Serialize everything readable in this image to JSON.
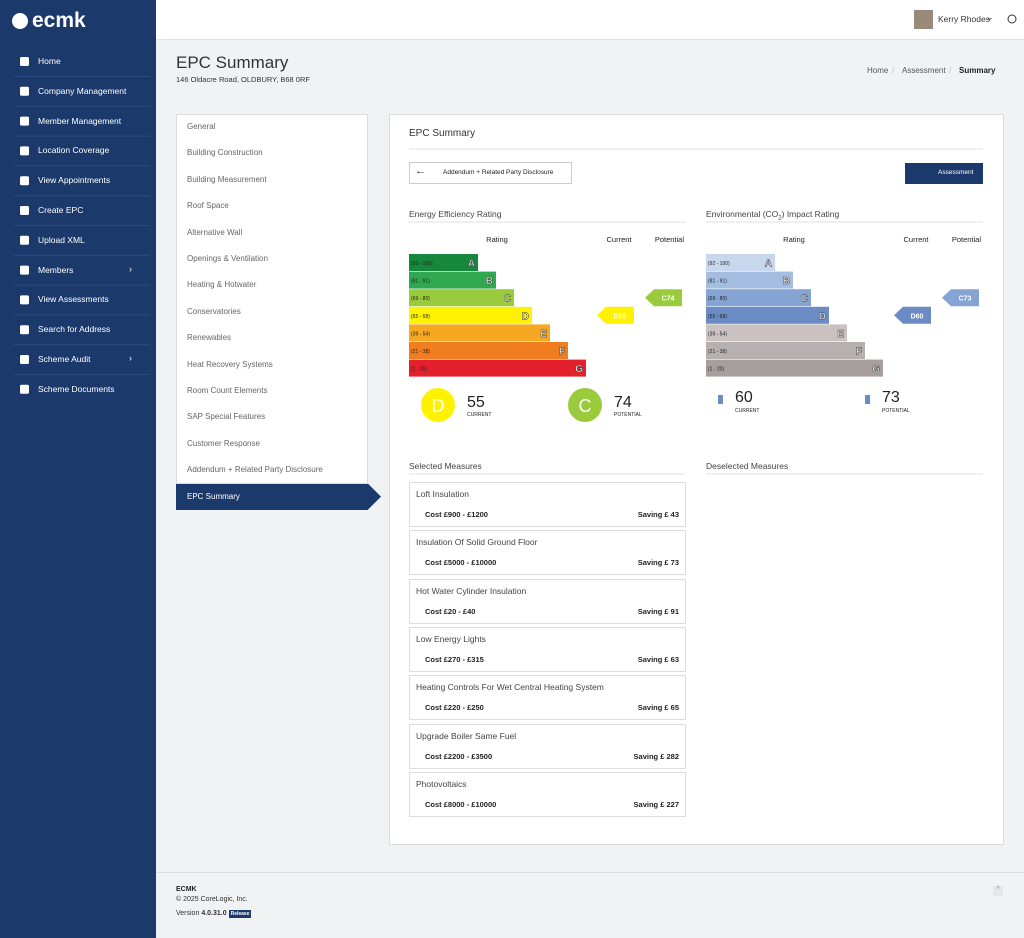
{
  "brand": "ecmk",
  "nav": [
    "Home",
    "Company Management",
    "Member Management",
    "Location Coverage",
    "View Appointments",
    "Create EPC",
    "Upload XML",
    "Members",
    "View Assessments",
    "Search for Address",
    "Scheme Audit",
    "Scheme Documents"
  ],
  "user": "Kerry Rhodes",
  "page": {
    "title": "EPC Summary",
    "subtitle": "146 Oldacre Road, OLDBURY, B68 0RF"
  },
  "breadcrumb": [
    "Home",
    "Assessment",
    "Summary"
  ],
  "steps": [
    "General",
    "Building Construction",
    "Building Measurement",
    "Roof Space",
    "Alternative Wall",
    "Openings & Ventilation",
    "Heating & Hotwater",
    "Conservatories",
    "Renewables",
    "Heat Recovery Systems",
    "Room Count Elements",
    "SAP Special Features",
    "Customer Response",
    "Addendum + Related Party Disclosure",
    "EPC Summary"
  ],
  "panel": {
    "title": "EPC Summary",
    "back_button": "Addendum + Related Party Disclosure",
    "assessment_button": "Assessment"
  },
  "ratings": [
    {
      "title": {
        "pre": "Energy Efficiency Rating"
      },
      "headers": [
        "Rating",
        "Current",
        "Potential"
      ],
      "bands": [
        {
          "range": "(92 - 100)",
          "letter": "A",
          "color": "#17873d"
        },
        {
          "range": "(81 - 91)",
          "letter": "B",
          "color": "#2fa84f"
        },
        {
          "range": "(69 - 80)",
          "letter": "C",
          "color": "#9acb3c"
        },
        {
          "range": "(55 - 68)",
          "letter": "D",
          "color": "#fff200"
        },
        {
          "range": "(39 - 54)",
          "letter": "E",
          "color": "#f7a823"
        },
        {
          "range": "(21 - 38)",
          "letter": "F",
          "color": "#f07d1f"
        },
        {
          "range": "(1 - 20)",
          "letter": "G",
          "color": "#e4202d"
        }
      ],
      "current": {
        "label": "D55",
        "band": "D",
        "score": 55,
        "caption": "CURRENT",
        "color": "#fff200"
      },
      "potential": {
        "label": "C74",
        "band": "C",
        "score": 74,
        "caption": "POTENTIAL",
        "color": "#9acb3c"
      }
    },
    {
      "title": {
        "pre": "Environmental (CO",
        "sub": "2",
        "post": ") Impact Rating"
      },
      "headers": [
        "Rating",
        "Current",
        "Potential"
      ],
      "bands": [
        {
          "range": "(92 - 100)",
          "letter": "A",
          "color": "#c9d7ee"
        },
        {
          "range": "(81 - 91)",
          "letter": "B",
          "color": "#a6bde2"
        },
        {
          "range": "(69 - 80)",
          "letter": "C",
          "color": "#85a3d3"
        },
        {
          "range": "(55 - 68)",
          "letter": "D",
          "color": "#6a8bc3"
        },
        {
          "range": "(39 - 54)",
          "letter": "E",
          "color": "#c9c2c1"
        },
        {
          "range": "(21 - 38)",
          "letter": "F",
          "color": "#b7b0b0"
        },
        {
          "range": "(1 - 20)",
          "letter": "G",
          "color": "#a79f9f"
        }
      ],
      "current": {
        "label": "D60",
        "score": 60,
        "caption": "CURRENT",
        "color": "#6a8bc3"
      },
      "potential": {
        "label": "C73",
        "score": 73,
        "caption": "POTENTIAL",
        "color": "#85a3d3"
      }
    }
  ],
  "measures": {
    "selected_title": "Selected Measures",
    "deselected_title": "Deselected Measures",
    "items": [
      {
        "name": "Loft Insulation",
        "cost": "Cost £900 - £1200",
        "saving": "Saving £ 43"
      },
      {
        "name": "Insulation Of Solid Ground Floor",
        "cost": "Cost £5000 - £10000",
        "saving": "Saving £ 73"
      },
      {
        "name": "Hot Water Cylinder Insulation",
        "cost": "Cost £20 - £40",
        "saving": "Saving £ 91"
      },
      {
        "name": "Low Energy Lights",
        "cost": "Cost £270 - £315",
        "saving": "Saving £ 63"
      },
      {
        "name": "Heating Controls For Wet Central Heating System",
        "cost": "Cost £220 - £250",
        "saving": "Saving £ 65"
      },
      {
        "name": "Upgrade Boiler Same Fuel",
        "cost": "Cost £2200 - £3500",
        "saving": "Saving £ 282"
      },
      {
        "name": "Photovoltaics",
        "cost": "Cost £8000 - £10000",
        "saving": "Saving £ 227"
      }
    ]
  },
  "footer": {
    "company": "ECMK",
    "copyright": "© 2025 CoreLogic, Inc.",
    "version_label": "Version",
    "version": "4.0.31.0",
    "badge": "Release"
  }
}
